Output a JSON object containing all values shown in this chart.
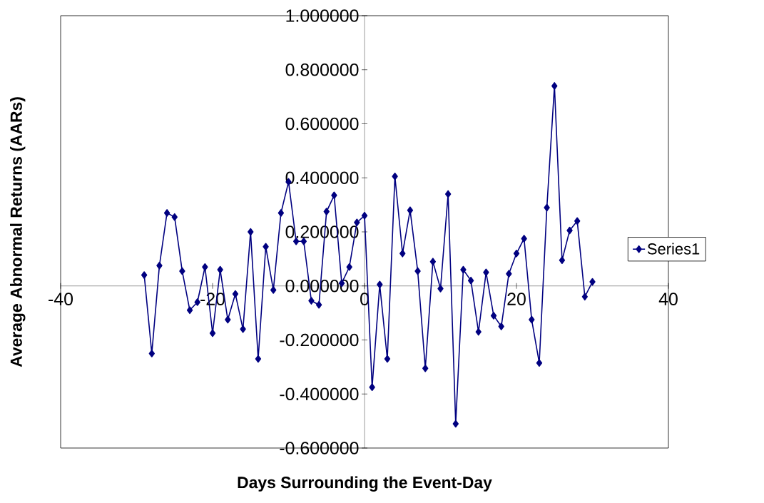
{
  "chart_data": {
    "type": "line",
    "xlabel": "Days Surrounding the Event-Day",
    "ylabel": "Average Abnormal Returns (AARs)",
    "xlim": [
      -40,
      40
    ],
    "ylim": [
      -0.6,
      1.0
    ],
    "xticks": [
      -40,
      -20,
      0,
      20,
      40
    ],
    "yticks": [
      {
        "value": -0.6,
        "label": "-0.600000"
      },
      {
        "value": -0.4,
        "label": "-0.400000"
      },
      {
        "value": -0.2,
        "label": "-0.200000"
      },
      {
        "value": 0,
        "label": "0.000000"
      },
      {
        "value": 0.2,
        "label": "0.200000"
      },
      {
        "value": 0.4,
        "label": "0.400000"
      },
      {
        "value": 0.6,
        "label": "0.600000"
      },
      {
        "value": 0.8,
        "label": "0.800000"
      },
      {
        "value": 1.0,
        "label": "1.000000"
      }
    ],
    "x": [
      -29,
      -28,
      -27,
      -26,
      -25,
      -24,
      -23,
      -22,
      -21,
      -20,
      -19,
      -18,
      -17,
      -16,
      -15,
      -14,
      -13,
      -12,
      -11,
      -10,
      -9,
      -8,
      -7,
      -6,
      -5,
      -4,
      -3,
      -2,
      -1,
      0,
      1,
      2,
      3,
      4,
      5,
      6,
      7,
      8,
      9,
      10,
      11,
      12,
      13,
      14,
      15,
      16,
      17,
      18,
      19,
      20,
      21,
      22,
      23,
      24,
      25,
      26,
      27,
      28,
      29,
      30
    ],
    "series": [
      {
        "name": "Series1",
        "color": "#000080",
        "values": [
          0.04,
          -0.25,
          0.075,
          0.27,
          0.255,
          0.055,
          -0.09,
          -0.06,
          0.07,
          -0.175,
          0.06,
          -0.125,
          -0.03,
          -0.16,
          0.2,
          -0.27,
          0.145,
          -0.015,
          0.27,
          0.385,
          0.165,
          0.165,
          -0.055,
          -0.07,
          0.275,
          0.335,
          0.01,
          0.07,
          0.235,
          0.26,
          -0.375,
          0.005,
          -0.27,
          0.405,
          0.12,
          0.28,
          0.055,
          -0.305,
          0.09,
          -0.01,
          0.34,
          -0.51,
          0.06,
          0.02,
          -0.17,
          0.05,
          -0.11,
          -0.15,
          0.045,
          0.12,
          0.175,
          -0.125,
          -0.285,
          0.29,
          0.74,
          0.095,
          0.205,
          0.24,
          -0.04,
          0.015
        ]
      }
    ],
    "marker": "diamond",
    "line_style": "solid",
    "legend": "right",
    "grid": false
  }
}
